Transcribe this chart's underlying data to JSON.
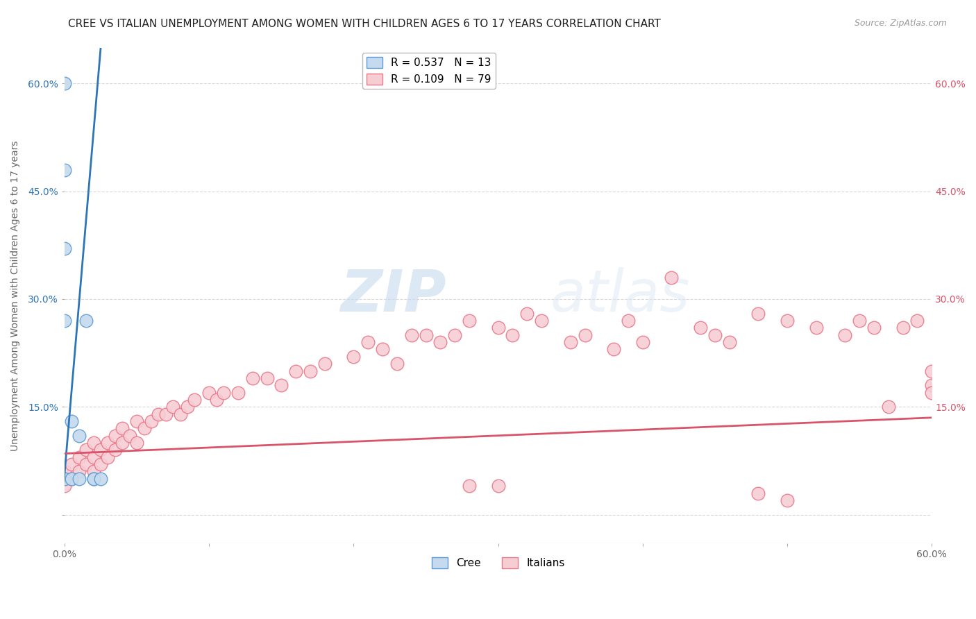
{
  "title": "CREE VS ITALIAN UNEMPLOYMENT AMONG WOMEN WITH CHILDREN AGES 6 TO 17 YEARS CORRELATION CHART",
  "source": "Source: ZipAtlas.com",
  "ylabel": "Unemployment Among Women with Children Ages 6 to 17 years",
  "xlim": [
    0.0,
    0.6
  ],
  "ylim": [
    -0.04,
    0.65
  ],
  "xticks": [
    0.0,
    0.1,
    0.2,
    0.3,
    0.4,
    0.5,
    0.6
  ],
  "xticklabels": [
    "0.0%",
    "",
    "",
    "",
    "",
    "",
    "60.0%"
  ],
  "yticks": [
    0.0,
    0.15,
    0.3,
    0.45,
    0.6
  ],
  "left_yticklabels": [
    "",
    "15.0%",
    "30.0%",
    "45.0%",
    "60.0%"
  ],
  "right_yticklabels": [
    "",
    "15.0%",
    "30.0%",
    "45.0%",
    "60.0%"
  ],
  "cree_color": "#c5daee",
  "cree_edge_color": "#5b9bd5",
  "italian_color": "#f7cdd4",
  "italian_edge_color": "#e8788a",
  "cree_line_color": "#2e75b6",
  "italian_line_color": "#d9546a",
  "legend_cree_label": "R = 0.537   N = 13",
  "legend_italian_label": "R = 0.109   N = 79",
  "watermark_zip": "ZIP",
  "watermark_atlas": "atlas",
  "cree_R": 0.537,
  "cree_N": 13,
  "italian_R": 0.109,
  "italian_N": 79,
  "cree_x": [
    0.0,
    0.0,
    0.0,
    0.0,
    0.0,
    0.005,
    0.005,
    0.01,
    0.01,
    0.015,
    0.02,
    0.02,
    0.025
  ],
  "cree_y": [
    0.6,
    0.48,
    0.37,
    0.27,
    0.05,
    0.13,
    0.05,
    0.11,
    0.05,
    0.27,
    0.05,
    0.05,
    0.05
  ],
  "cree_line_x0": -0.002,
  "cree_line_x1": 0.025,
  "cree_line_y0": 0.01,
  "cree_line_y1": 0.65,
  "italian_x": [
    0.0,
    0.0,
    0.0,
    0.005,
    0.005,
    0.01,
    0.01,
    0.015,
    0.015,
    0.02,
    0.02,
    0.02,
    0.025,
    0.025,
    0.03,
    0.03,
    0.035,
    0.035,
    0.04,
    0.04,
    0.045,
    0.05,
    0.05,
    0.055,
    0.06,
    0.065,
    0.07,
    0.075,
    0.08,
    0.085,
    0.09,
    0.1,
    0.105,
    0.11,
    0.12,
    0.13,
    0.14,
    0.15,
    0.16,
    0.17,
    0.18,
    0.2,
    0.21,
    0.22,
    0.23,
    0.24,
    0.25,
    0.26,
    0.27,
    0.28,
    0.3,
    0.31,
    0.32,
    0.33,
    0.35,
    0.36,
    0.38,
    0.39,
    0.4,
    0.42,
    0.44,
    0.45,
    0.46,
    0.48,
    0.5,
    0.52,
    0.54,
    0.55,
    0.56,
    0.57,
    0.58,
    0.59,
    0.6,
    0.6,
    0.6,
    0.28,
    0.3,
    0.48,
    0.5
  ],
  "italian_y": [
    0.06,
    0.05,
    0.04,
    0.07,
    0.05,
    0.08,
    0.06,
    0.09,
    0.07,
    0.1,
    0.08,
    0.06,
    0.09,
    0.07,
    0.1,
    0.08,
    0.11,
    0.09,
    0.12,
    0.1,
    0.11,
    0.13,
    0.1,
    0.12,
    0.13,
    0.14,
    0.14,
    0.15,
    0.14,
    0.15,
    0.16,
    0.17,
    0.16,
    0.17,
    0.17,
    0.19,
    0.19,
    0.18,
    0.2,
    0.2,
    0.21,
    0.22,
    0.24,
    0.23,
    0.21,
    0.25,
    0.25,
    0.24,
    0.25,
    0.27,
    0.26,
    0.25,
    0.28,
    0.27,
    0.24,
    0.25,
    0.23,
    0.27,
    0.24,
    0.33,
    0.26,
    0.25,
    0.24,
    0.28,
    0.27,
    0.26,
    0.25,
    0.27,
    0.26,
    0.15,
    0.26,
    0.27,
    0.18,
    0.2,
    0.17,
    0.04,
    0.04,
    0.03,
    0.02
  ],
  "italian_line_x0": 0.0,
  "italian_line_x1": 0.6,
  "italian_line_y0": 0.085,
  "italian_line_y1": 0.135,
  "background_color": "#ffffff",
  "grid_color": "#d8d8d8",
  "grid_style": "--"
}
